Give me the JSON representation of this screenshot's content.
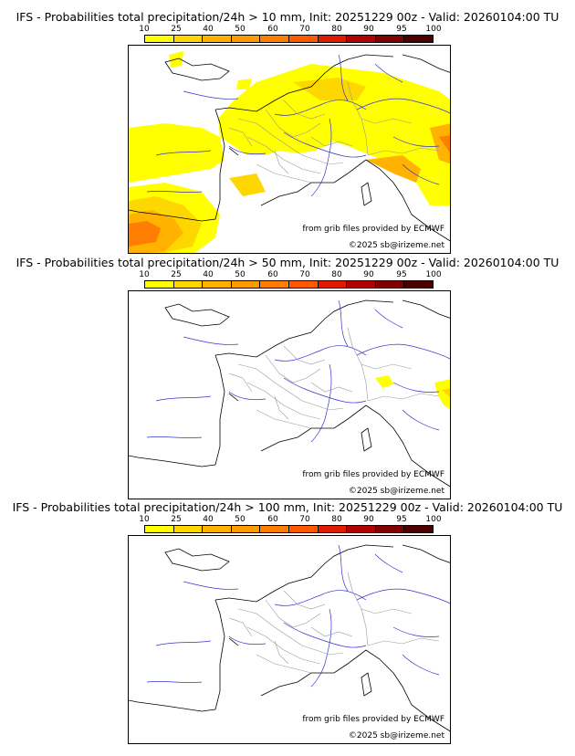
{
  "colorbar": {
    "ticks": [
      "10",
      "25",
      "40",
      "50",
      "60",
      "70",
      "80",
      "90",
      "95",
      "100"
    ],
    "colors": [
      "#ffff00",
      "#ffd700",
      "#ffb300",
      "#ff9a00",
      "#ff7d00",
      "#ff5a00",
      "#e01b00",
      "#b30000",
      "#800000",
      "#4d0000"
    ]
  },
  "panels": [
    {
      "title": "IFS - Probabilities total precipitation/24h > 10 mm, Init: 20251229 00z - Valid: 20260104:00 TU",
      "credit_source": "from grib files provided by ECMWF",
      "credit_copyright": "©2025 sb@irizeme.net"
    },
    {
      "title": "IFS - Probabilities total precipitation/24h > 50 mm, Init: 20251229 00z - Valid: 20260104:00 TU",
      "credit_source": "from grib files provided by ECMWF",
      "credit_copyright": "©2025 sb@irizeme.net"
    },
    {
      "title": "IFS - Probabilities total precipitation/24h > 100 mm, Init: 20251229 00z - Valid: 20260104:00 TU",
      "credit_source": "from grib files provided by ECMWF",
      "credit_copyright": "©2025 sb@irizeme.net"
    }
  ]
}
